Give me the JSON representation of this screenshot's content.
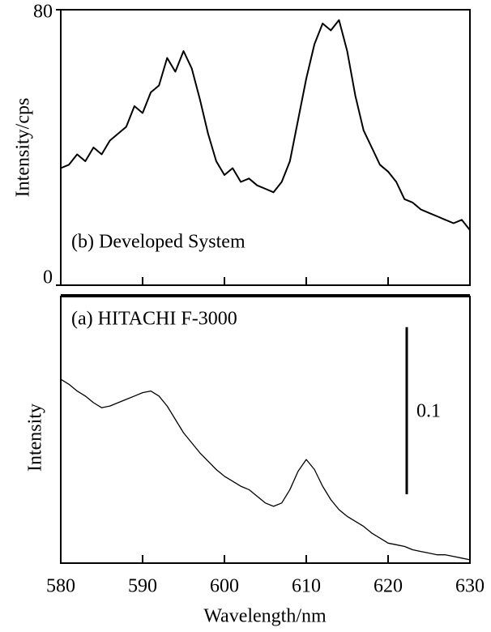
{
  "chart_data": [
    {
      "type": "line",
      "y_label": "Intensity/cps",
      "annotation": "(b) Developed System",
      "color": "#000000",
      "x": [
        580,
        581,
        582,
        583,
        584,
        585,
        586,
        587,
        588,
        589,
        590,
        591,
        592,
        593,
        594,
        595,
        596,
        597,
        598,
        599,
        600,
        601,
        602,
        603,
        604,
        605,
        606,
        607,
        608,
        609,
        610,
        611,
        612,
        613,
        614,
        615,
        616,
        617,
        618,
        619,
        620,
        621,
        622,
        623,
        624,
        625,
        626,
        627,
        628,
        629,
        630
      ],
      "values": [
        34,
        35,
        38,
        36,
        40,
        38,
        42,
        44,
        46,
        52,
        50,
        56,
        58,
        66,
        62,
        68,
        63,
        54,
        44,
        36,
        32,
        34,
        30,
        31,
        29,
        28,
        27,
        30,
        36,
        48,
        60,
        70,
        76,
        74,
        77,
        68,
        55,
        45,
        40,
        35,
        33,
        30,
        25,
        24,
        22,
        21,
        20,
        19,
        18,
        19,
        16
      ],
      "xlim": [
        580,
        630
      ],
      "ylim": [
        0,
        80
      ],
      "yticks": [
        0,
        80
      ]
    },
    {
      "type": "line",
      "y_label": "Intensity",
      "x_label": "Wavelength/nm",
      "annotation": "(a) HITACHI F-3000",
      "color": "#000000",
      "x": [
        580,
        581,
        582,
        583,
        584,
        585,
        586,
        587,
        588,
        589,
        590,
        591,
        592,
        593,
        594,
        595,
        596,
        597,
        598,
        599,
        600,
        601,
        602,
        603,
        604,
        605,
        606,
        607,
        608,
        609,
        610,
        611,
        612,
        613,
        614,
        615,
        616,
        617,
        618,
        619,
        620,
        621,
        622,
        623,
        624,
        625,
        626,
        627,
        628,
        629,
        630
      ],
      "values": [
        0.11,
        0.107,
        0.103,
        0.1,
        0.096,
        0.093,
        0.094,
        0.096,
        0.098,
        0.1,
        0.102,
        0.103,
        0.1,
        0.094,
        0.086,
        0.078,
        0.072,
        0.066,
        0.061,
        0.056,
        0.052,
        0.049,
        0.046,
        0.044,
        0.04,
        0.036,
        0.034,
        0.036,
        0.044,
        0.055,
        0.062,
        0.056,
        0.046,
        0.038,
        0.032,
        0.028,
        0.025,
        0.022,
        0.018,
        0.015,
        0.012,
        0.011,
        0.01,
        0.008,
        0.007,
        0.006,
        0.005,
        0.005,
        0.004,
        0.003,
        0.002
      ],
      "xlim": [
        580,
        630
      ],
      "ylim": [
        0,
        0.16
      ],
      "xticks": [
        580,
        590,
        600,
        610,
        620,
        630
      ],
      "scale_bar": {
        "value": 0.1,
        "label": "0.1"
      }
    }
  ]
}
